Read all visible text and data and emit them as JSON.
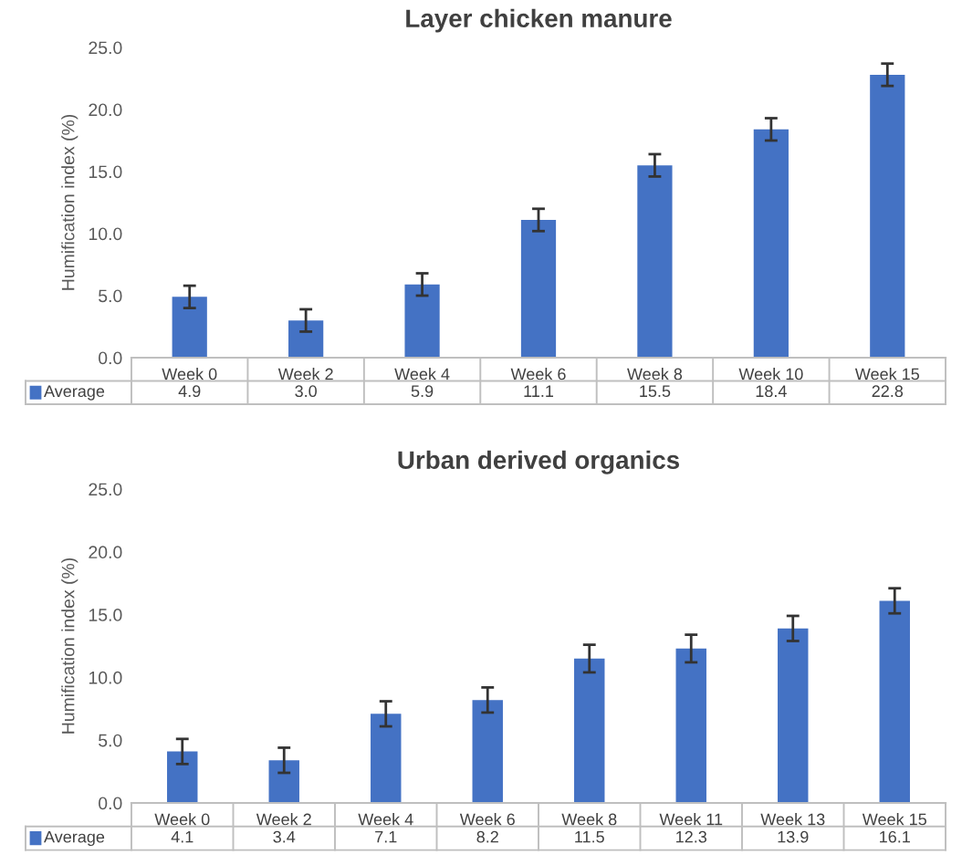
{
  "chart_data": [
    {
      "type": "bar",
      "title": "Layer chicken manure",
      "ylabel": "Humification index (%)",
      "categories": [
        "Week 0",
        "Week 2",
        "Week 4",
        "Week 6",
        "Week 8",
        "Week 10",
        "Week 15"
      ],
      "series": [
        {
          "name": "Average",
          "color": "#4472c4",
          "values": [
            4.9,
            3.0,
            5.9,
            11.1,
            15.5,
            18.4,
            22.8
          ],
          "value_labels": [
            "4.9",
            "3.0",
            "5.9",
            "11.1",
            "15.5",
            "18.4",
            "22.8"
          ],
          "errors": [
            0.9,
            0.9,
            0.9,
            0.9,
            0.9,
            0.9,
            0.9
          ]
        }
      ],
      "ylim": [
        0,
        25
      ],
      "yticks": [
        {
          "value": 0,
          "label": "0.0"
        },
        {
          "value": 5,
          "label": "5.0"
        },
        {
          "value": 10,
          "label": "10.0"
        },
        {
          "value": 15,
          "label": "15.0"
        },
        {
          "value": 20,
          "label": "20.0"
        },
        {
          "value": 25,
          "label": "25.0"
        }
      ],
      "grid": false,
      "legend": "bottom"
    },
    {
      "type": "bar",
      "title": "Urban derived organics",
      "ylabel": "Humification index (%)",
      "categories": [
        "Week 0",
        "Week 2",
        "Week 4",
        "Week 6",
        "Week 8",
        "Week 11",
        "Week 13",
        "Week 15"
      ],
      "series": [
        {
          "name": "Average",
          "color": "#4472c4",
          "values": [
            4.1,
            3.4,
            7.1,
            8.2,
            11.5,
            12.3,
            13.9,
            16.1
          ],
          "value_labels": [
            "4.1",
            "3.4",
            "7.1",
            "8.2",
            "11.5",
            "12.3",
            "13.9",
            "16.1"
          ],
          "errors": [
            1.0,
            1.0,
            1.0,
            1.0,
            1.1,
            1.1,
            1.0,
            1.0
          ]
        }
      ],
      "ylim": [
        0,
        25
      ],
      "yticks": [
        {
          "value": 0,
          "label": "0.0"
        },
        {
          "value": 5,
          "label": "5.0"
        },
        {
          "value": 10,
          "label": "10.0"
        },
        {
          "value": 15,
          "label": "15.0"
        },
        {
          "value": 20,
          "label": "20.0"
        },
        {
          "value": 25,
          "label": "25.0"
        }
      ],
      "grid": false,
      "legend": "bottom"
    }
  ]
}
